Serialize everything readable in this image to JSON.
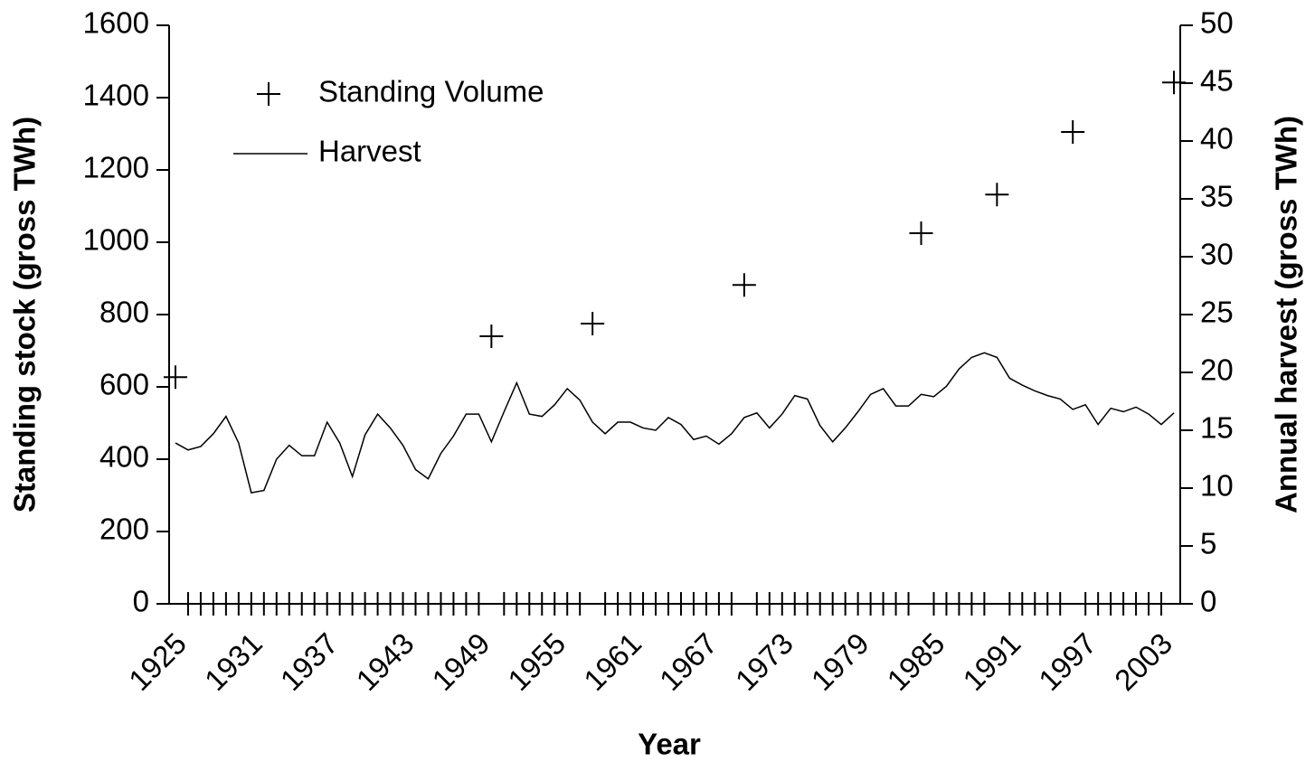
{
  "chart_data": {
    "type": "line",
    "xlabel": "Year",
    "ylabel": "Standing stock (gross TWh)",
    "y2label": "Annual harvest (gross TWh)",
    "categories": [
      "1925",
      null,
      null,
      null,
      null,
      null,
      "1931",
      null,
      null,
      null,
      null,
      null,
      "1937",
      null,
      null,
      null,
      null,
      null,
      "1943",
      null,
      null,
      null,
      null,
      null,
      "1949",
      null,
      null,
      null,
      null,
      null,
      "1955",
      null,
      null,
      null,
      null,
      null,
      "1961",
      null,
      null,
      null,
      null,
      null,
      "1967",
      null,
      null,
      null,
      null,
      null,
      "1973",
      null,
      null,
      null,
      null,
      null,
      "1979",
      null,
      null,
      null,
      null,
      null,
      "1985",
      null,
      null,
      null,
      null,
      null,
      "1991",
      null,
      null,
      null,
      null,
      null,
      "1997",
      null,
      null,
      null,
      null,
      null,
      "2003",
      null
    ],
    "series": [
      {
        "name": "Standing Volume",
        "color": "#000000",
        "mode": "markers",
        "axis": "y",
        "values": [
          627,
          0,
          0,
          0,
          0,
          0,
          0,
          0,
          0,
          0,
          0,
          0,
          0,
          0,
          0,
          0,
          0,
          0,
          0,
          0,
          0,
          0,
          0,
          0,
          0,
          740,
          0,
          0,
          0,
          0,
          0,
          0,
          0,
          775,
          0,
          0,
          0,
          0,
          0,
          0,
          0,
          0,
          0,
          0,
          0,
          882,
          0,
          0,
          0,
          0,
          0,
          0,
          0,
          0,
          0,
          0,
          0,
          0,
          0,
          1025,
          0,
          0,
          0,
          0,
          0,
          1132,
          0,
          0,
          0,
          0,
          0,
          1305,
          0,
          0,
          0,
          0,
          0,
          0,
          0,
          1442
        ]
      },
      {
        "name": "Harvest",
        "color": "#000000",
        "mode": "lines",
        "axis": "y2",
        "values": [
          13.9,
          13.3,
          13.6,
          14.7,
          16.2,
          13.9,
          9.6,
          9.8,
          12.5,
          13.7,
          12.8,
          12.8,
          15.7,
          13.9,
          11.0,
          14.6,
          16.4,
          15.2,
          13.7,
          11.6,
          10.8,
          13.0,
          14.5,
          16.4,
          16.4,
          14.0,
          16.6,
          19.1,
          16.4,
          16.2,
          17.2,
          18.6,
          17.6,
          15.7,
          14.7,
          15.7,
          15.7,
          15.2,
          15.0,
          16.1,
          15.5,
          14.2,
          14.5,
          13.8,
          14.7,
          16.1,
          16.5,
          15.2,
          16.4,
          18.0,
          17.7,
          15.4,
          14.0,
          15.2,
          16.6,
          18.1,
          18.6,
          17.1,
          17.1,
          18.1,
          17.9,
          18.8,
          20.3,
          21.3,
          21.7,
          21.3,
          19.5,
          18.9,
          18.4,
          18.0,
          17.7,
          16.8,
          17.2,
          15.5,
          16.9,
          16.6,
          17.0,
          16.4,
          15.5,
          16.5
        ]
      }
    ],
    "ylim": [
      0,
      1600
    ],
    "yticks": [
      0,
      200,
      400,
      600,
      800,
      1000,
      1200,
      1400,
      1600
    ],
    "y2lim": [
      0,
      50
    ],
    "y2ticks": [
      0,
      5,
      10,
      15,
      20,
      25,
      30,
      35,
      40,
      45,
      50
    ],
    "legend": "upper left",
    "grid": false
  }
}
